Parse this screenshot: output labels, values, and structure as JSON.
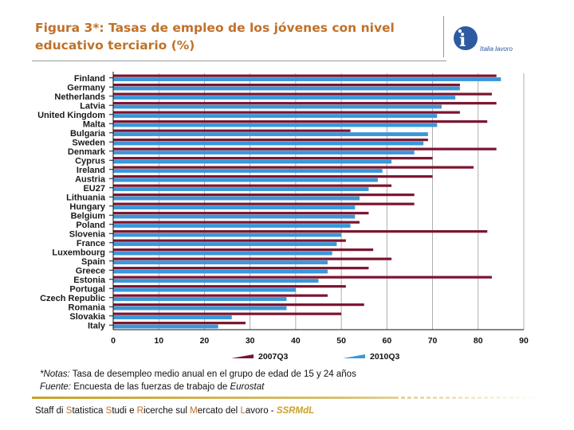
{
  "page": {
    "title_line1": "Figura 3*: Tasas de empleo de los jóvenes  con nivel",
    "title_line2": "educativo terciario (%)",
    "logo_glyph": "i",
    "logo_text": "Italia lavoro",
    "note_label": "*Notas:",
    "note_text": " Tasa de desempleo medio anual en el grupo de edad de 15 y 24 años",
    "source_label": "Fuente:",
    "source_text": " Encuesta de las fuerzas de trabajo de ",
    "source_name": "Eurostat",
    "footer": {
      "p1": "Staff di ",
      "h1": "S",
      "p2": "tatistica ",
      "h2": "S",
      "p3": "tudi e ",
      "h3": "R",
      "p4": "icerche sul ",
      "h4": "M",
      "p5": "ercato del ",
      "h5": "L",
      "p6": "avoro - ",
      "brand": "SSRMdL"
    }
  },
  "colors": {
    "series1": "#7b1430",
    "series2": "#3a97d8",
    "title": "#c0712a",
    "grid": "#9a9a9a",
    "axis": "#111111"
  },
  "chart_data": {
    "type": "bar",
    "orientation": "horizontal",
    "categories": [
      "Finland",
      "Germany",
      "Netherlands",
      "Latvia",
      "United Kingdom",
      "Malta",
      "Bulgaria",
      "Sweden",
      "Denmark",
      "Cyprus",
      "Ireland",
      "Austria",
      "EU27",
      "Lithuania",
      "Hungary",
      "Belgium",
      "Poland",
      "Slovenia",
      "France",
      "Luxembourg",
      "Spain",
      "Greece",
      "Estonia",
      "Portugal",
      "Czech Republic",
      "Romania",
      "Slovakia",
      "Italy"
    ],
    "series": [
      {
        "name": "2007Q3",
        "values": [
          84,
          76,
          83,
          84,
          76,
          82,
          52,
          69,
          84,
          70,
          79,
          70,
          61,
          66,
          66,
          56,
          54,
          82,
          51,
          57,
          61,
          56,
          83,
          51,
          47,
          55,
          50,
          29
        ]
      },
      {
        "name": "2010Q3",
        "values": [
          85,
          76,
          75,
          72,
          71,
          71,
          69,
          68,
          66,
          61,
          59,
          58,
          56,
          54,
          53,
          53,
          52,
          50,
          49,
          48,
          47,
          47,
          45,
          40,
          38,
          38,
          26,
          23
        ]
      }
    ],
    "xlim": [
      0,
      90
    ],
    "xticks": [
      0,
      10,
      20,
      30,
      40,
      50,
      60,
      70,
      80,
      90
    ],
    "grid": true,
    "legend_position": "bottom"
  }
}
